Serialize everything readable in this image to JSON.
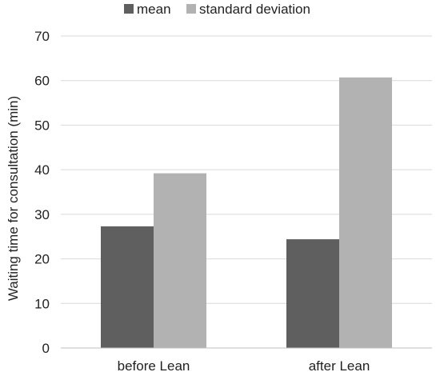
{
  "chart_data": {
    "type": "bar",
    "title": "",
    "xlabel": "",
    "ylabel": "Waiting time for consultation  (min)",
    "categories": [
      "before Lean",
      "after Lean"
    ],
    "series": [
      {
        "name": "mean",
        "values": [
          27.3,
          24.4
        ],
        "color": "#5f5f5f"
      },
      {
        "name": "standard deviation",
        "values": [
          39.2,
          60.7
        ],
        "color": "#b2b2b2"
      }
    ],
    "ylim": [
      0,
      70
    ],
    "yticks": [
      0,
      10,
      20,
      30,
      40,
      50,
      60,
      70
    ],
    "grid": true,
    "legend_position": "top",
    "gridline_color": "#d9d9d9"
  }
}
